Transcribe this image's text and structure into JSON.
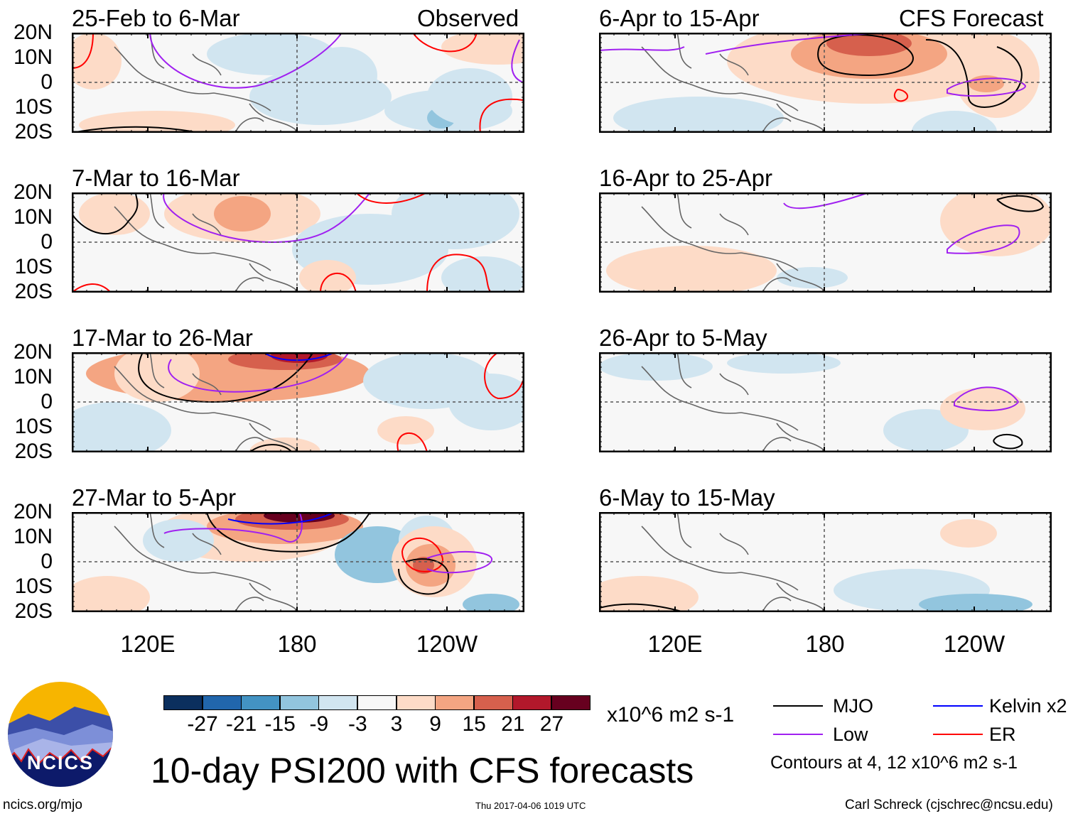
{
  "figure": {
    "title": "10-day PSI200 with CFS forecasts",
    "left_column_label": "Observed",
    "right_column_label": "CFS Forecast",
    "lat_labels": [
      "20N",
      "10N",
      "0",
      "10S",
      "20S"
    ],
    "lon_labels": [
      "120E",
      "180",
      "120W"
    ],
    "panels_left": [
      "25-Feb to 6-Mar",
      "7-Mar to 16-Mar",
      "17-Mar to 26-Mar",
      "27-Mar to 5-Apr"
    ],
    "panels_right": [
      "6-Apr to 15-Apr",
      "16-Apr to 25-Apr",
      "26-Apr to 5-May",
      "6-May to 15-May"
    ]
  },
  "colorbar": {
    "ticks": [
      "-27",
      "-21",
      "-15",
      "-9",
      "-3",
      "3",
      "9",
      "15",
      "21",
      "27"
    ],
    "colors": [
      "#0b2f5e",
      "#2166ac",
      "#4393c3",
      "#92c5de",
      "#d1e5f0",
      "#f7f7f7",
      "#fddbc7",
      "#f4a582",
      "#d6604d",
      "#b2182b",
      "#67001f"
    ],
    "units": "x10^6 m2 s-1"
  },
  "legend": {
    "items": [
      {
        "label": "MJO",
        "color": "#000000"
      },
      {
        "label": "Kelvin x2",
        "color": "#0000ff"
      },
      {
        "label": "Low",
        "color": "#a020f0"
      },
      {
        "label": "ER",
        "color": "#ff0000"
      }
    ],
    "contours_note": "Contours at 4, 12 x10^6 m2 s-1"
  },
  "logo": {
    "text": "NCICS"
  },
  "footer": {
    "url": "ncics.org/mjo",
    "timestamp": "Thu 2017-04-06 1019 UTC",
    "credit": "Carl Schreck (cjschrec@ncsu.edu)"
  }
}
